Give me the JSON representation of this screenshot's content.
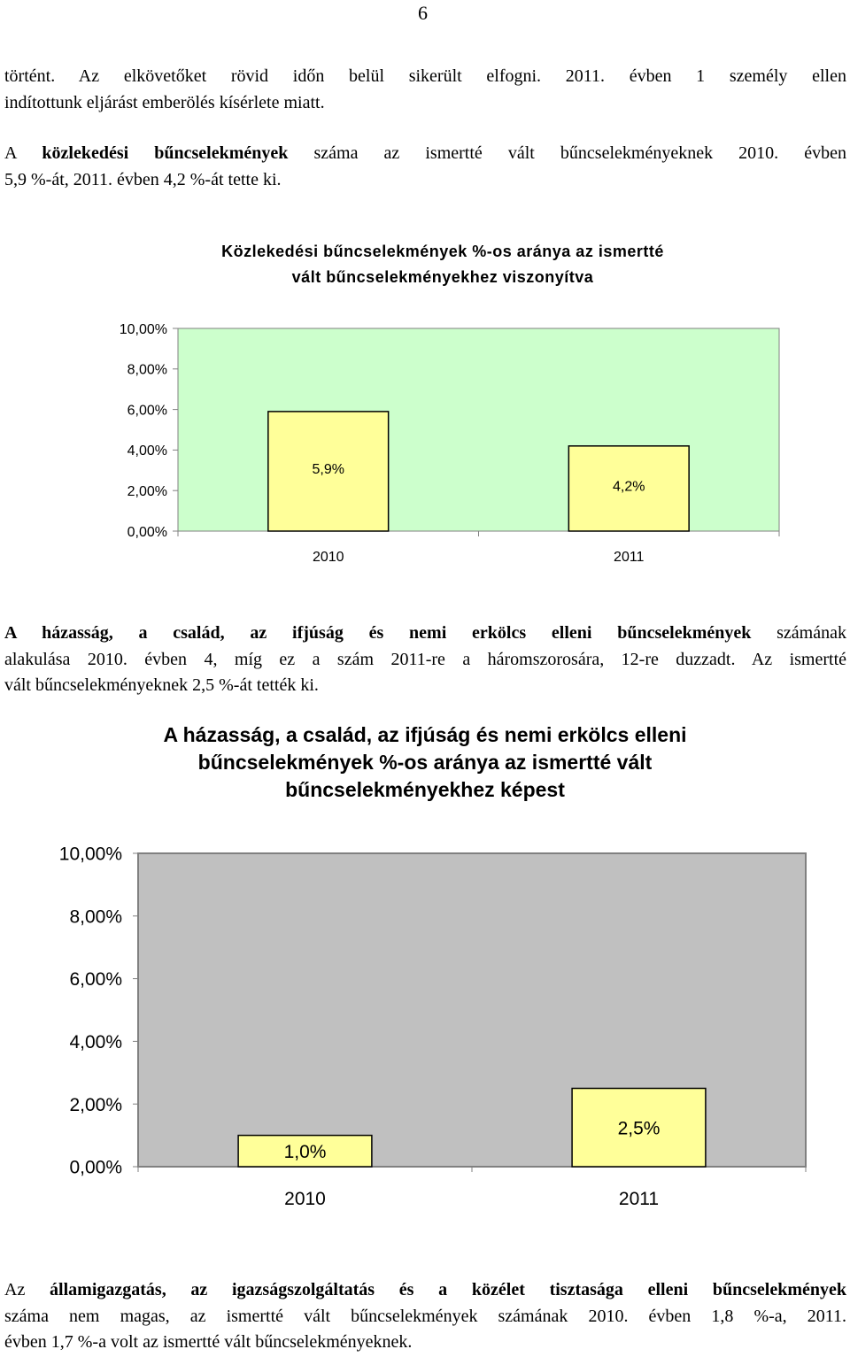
{
  "page_number": "6",
  "paragraph1": {
    "line1": "történt. Az elkövetőket rövid időn belül sikerült elfogni. 2011. évben 1 személy ellen",
    "line2": "indítottunk eljárást emberölés kísérlete miatt."
  },
  "paragraph2": {
    "prefix": "A ",
    "bold": "közlekedési bűncselekmények",
    "line1_rest": " száma az ismertté vált bűncselekményeknek 2010. évben",
    "line2": "5,9 %-át, 2011. évben 4,2 %-át tette ki."
  },
  "paragraph3": {
    "bold": "A házasság, a család, az ifjúság és nemi erkölcs elleni bűncselekmények",
    "line1_rest": " számának",
    "line2": "alakulása 2010. évben 4, míg ez a szám 2011-re a háromszorosára, 12-re duzzadt. Az ismertté",
    "line3": "vált bűncselekményeknek 2,5 %-át tették ki."
  },
  "paragraph4": {
    "prefix": "Az ",
    "bold": "államigazgatás, az igazságszolgáltatás és a közélet tisztasága elleni bűncselekmények",
    "line2": "száma nem magas, az ismertté vált bűncselekmények számának 2010. évben 1,8 %-a, 2011.",
    "line3": "évben 1,7 %-a volt az ismertté vált bűncselekményeknek."
  },
  "chart1_title": {
    "line1": "Közlekedési bűncselekmények %-os aránya az ismertté",
    "line2": "vált bűncselekményekhez viszonyítva"
  },
  "chart2_title": {
    "line1": "A házasság, a család, az ifjúság és nemi erkölcs elleni",
    "line2": "bűncselekmények %-os aránya az ismertté vált",
    "line3": "bűncselekményekhez képest"
  },
  "chart_data": [
    {
      "type": "bar",
      "title": "Közlekedési bűncselekmények %-os aránya az ismertté vált bűncselekményekhez viszonyítva",
      "categories": [
        "2010",
        "2011"
      ],
      "values": [
        5.9,
        4.2
      ],
      "data_labels": [
        "5,9%",
        "4,2%"
      ],
      "y_ticks": [
        "0,00%",
        "2,00%",
        "4,00%",
        "6,00%",
        "8,00%",
        "10,00%"
      ],
      "ylim": [
        0,
        10
      ],
      "plot_color": "#ccffcc",
      "bar_color": "#ffff99",
      "grid": false,
      "legend": "none"
    },
    {
      "type": "bar",
      "title": "A házasság, a család, az ifjúság és nemi erkölcs elleni bűncselekmények %-os aránya az ismertté vált bűncselekményekhez képest",
      "categories": [
        "2010",
        "2011"
      ],
      "values": [
        1.0,
        2.5
      ],
      "data_labels": [
        "1,0%",
        "2,5%"
      ],
      "y_ticks": [
        "0,00%",
        "2,00%",
        "4,00%",
        "6,00%",
        "8,00%",
        "10,00%"
      ],
      "ylim": [
        0,
        10
      ],
      "plot_color": "#c0c0c0",
      "bar_color": "#ffff99",
      "grid": false,
      "legend": "none"
    }
  ]
}
